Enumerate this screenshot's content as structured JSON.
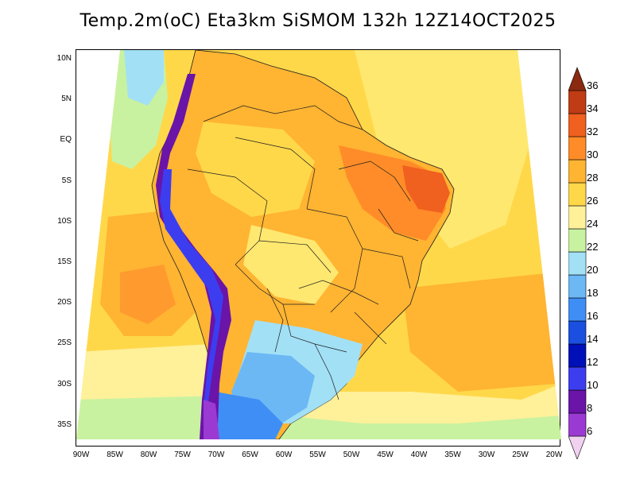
{
  "title": "Temp.2m(oC) Eta3km SiSMOM 132h 12Z14OCT2025",
  "map": {
    "lat_labels": [
      "10N",
      "5N",
      "EQ",
      "5S",
      "10S",
      "15S",
      "20S",
      "25S",
      "30S",
      "35S"
    ],
    "lon_labels": [
      "90W",
      "85W",
      "80W",
      "75W",
      "70W",
      "65W",
      "60W",
      "55W",
      "50W",
      "45W",
      "40W",
      "35W",
      "30W",
      "25W",
      "20W"
    ]
  },
  "colorbar": {
    "labels": [
      "36",
      "34",
      "32",
      "30",
      "28",
      "26",
      "24",
      "22",
      "20",
      "18",
      "16",
      "14",
      "12",
      "10",
      "8",
      "6"
    ],
    "colors": [
      "#f0d2f0",
      "#9b3ad3",
      "#6a14a8",
      "#3d3df0",
      "#0010b8",
      "#1a4fe0",
      "#3f8ef5",
      "#6cb8f5",
      "#a2e0f5",
      "#c8f2a0",
      "#fff09a",
      "#ffd84a",
      "#ffb432",
      "#ff8c28",
      "#f0601e",
      "#c03c14",
      "#8a2a10"
    ]
  }
}
